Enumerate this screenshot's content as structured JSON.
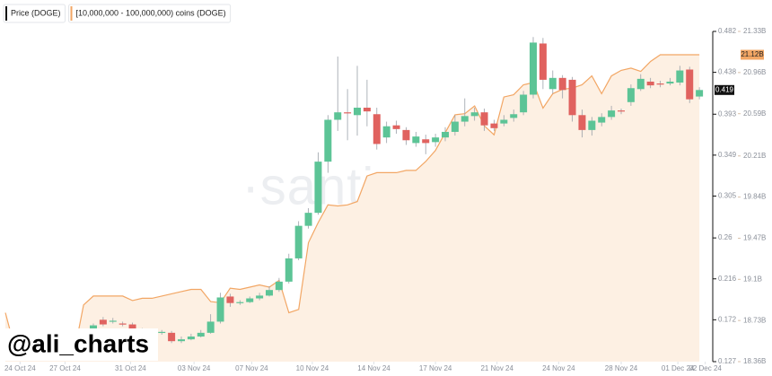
{
  "chart_data": {
    "type": "candlestick",
    "watermark": "·santiment·",
    "overlay_text": "@ali_charts",
    "series": [
      {
        "name": "Price (DOGE)",
        "type": "candlestick",
        "color": "#111111",
        "up_color": "#5cc496",
        "down_color": "#e0625f",
        "x": [
          0,
          1,
          2,
          3,
          4,
          5,
          6,
          7,
          8,
          9,
          10,
          11,
          12,
          13,
          14,
          15,
          16,
          17,
          18,
          19,
          20,
          21,
          22,
          23,
          24,
          25,
          26,
          27,
          28,
          29,
          30,
          31,
          32,
          33,
          34,
          35,
          36,
          37,
          38,
          39,
          40,
          41,
          42,
          43,
          44,
          45,
          46,
          47,
          48,
          49,
          50,
          51,
          52,
          53,
          54,
          55,
          56,
          57,
          58,
          59,
          60,
          61,
          62
        ],
        "open": [
          0.159,
          0.172,
          0.17,
          0.168,
          0.167,
          0.161,
          0.16,
          0.158,
          0.158,
          0.149,
          0.151,
          0.154,
          0.158,
          0.17,
          0.197,
          0.19,
          0.191,
          0.195,
          0.198,
          0.204,
          0.213,
          0.238,
          0.273,
          0.287,
          0.342,
          0.387,
          0.395,
          0.392,
          0.4,
          0.393,
          0.368,
          0.381,
          0.376,
          0.362,
          0.366,
          0.363,
          0.368,
          0.374,
          0.385,
          0.391,
          0.395,
          0.383,
          0.383,
          0.389,
          0.395,
          0.414,
          0.469,
          0.42,
          0.432,
          0.43,
          0.392,
          0.376,
          0.384,
          0.39,
          0.397,
          0.406,
          0.42,
          0.428,
          0.426,
          0.426,
          0.427,
          0.441,
          0.412
        ],
        "high": [
          0.168,
          0.175,
          0.174,
          0.17,
          0.169,
          0.163,
          0.162,
          0.161,
          0.16,
          0.154,
          0.157,
          0.161,
          0.178,
          0.201,
          0.2,
          0.193,
          0.197,
          0.201,
          0.208,
          0.217,
          0.243,
          0.278,
          0.292,
          0.352,
          0.392,
          0.455,
          0.42,
          0.445,
          0.43,
          0.4,
          0.385,
          0.386,
          0.379,
          0.374,
          0.371,
          0.372,
          0.379,
          0.392,
          0.41,
          0.4,
          0.399,
          0.387,
          0.392,
          0.398,
          0.418,
          0.476,
          0.475,
          0.44,
          0.435,
          0.433,
          0.398,
          0.39,
          0.394,
          0.402,
          0.399,
          0.425,
          0.436,
          0.432,
          0.429,
          0.432,
          0.445,
          0.444,
          0.422
        ],
        "low": [
          0.156,
          0.165,
          0.168,
          0.165,
          0.159,
          0.158,
          0.157,
          0.156,
          0.147,
          0.147,
          0.15,
          0.153,
          0.157,
          0.168,
          0.186,
          0.188,
          0.19,
          0.193,
          0.197,
          0.202,
          0.211,
          0.236,
          0.27,
          0.285,
          0.33,
          0.375,
          0.365,
          0.37,
          0.38,
          0.355,
          0.362,
          0.372,
          0.36,
          0.358,
          0.35,
          0.358,
          0.364,
          0.37,
          0.38,
          0.386,
          0.375,
          0.375,
          0.38,
          0.385,
          0.392,
          0.41,
          0.42,
          0.415,
          0.41,
          0.385,
          0.368,
          0.37,
          0.38,
          0.387,
          0.393,
          0.402,
          0.418,
          0.421,
          0.422,
          0.424,
          0.424,
          0.405,
          0.409
        ],
        "close": [
          0.166,
          0.167,
          0.171,
          0.167,
          0.161,
          0.16,
          0.159,
          0.159,
          0.149,
          0.151,
          0.154,
          0.158,
          0.17,
          0.196,
          0.19,
          0.191,
          0.195,
          0.198,
          0.204,
          0.213,
          0.238,
          0.273,
          0.287,
          0.342,
          0.387,
          0.395,
          0.394,
          0.4,
          0.396,
          0.361,
          0.38,
          0.377,
          0.365,
          0.369,
          0.362,
          0.368,
          0.374,
          0.385,
          0.391,
          0.395,
          0.381,
          0.378,
          0.387,
          0.393,
          0.414,
          0.47,
          0.43,
          0.432,
          0.419,
          0.392,
          0.376,
          0.386,
          0.39,
          0.397,
          0.396,
          0.421,
          0.431,
          0.424,
          0.425,
          0.428,
          0.44,
          0.409,
          0.419
        ]
      },
      {
        "name": "[10,000,000 - 100,000,000) coins (DOGE)",
        "type": "area",
        "axis": "y2",
        "color": "#f2a664",
        "fill": "#fdf0e3",
        "x": [
          -9,
          -8,
          -7,
          -6,
          -5,
          -4,
          -3,
          -2,
          -1,
          0,
          1,
          2,
          3,
          4,
          5,
          6,
          7,
          8,
          9,
          10,
          11,
          12,
          13,
          14,
          15,
          16,
          17,
          18,
          19,
          20,
          21,
          22,
          23,
          24,
          25,
          26,
          27,
          28,
          29,
          30,
          31,
          32,
          33,
          34,
          35,
          36,
          37,
          38,
          39,
          40,
          41,
          42,
          43,
          44,
          45,
          46,
          47,
          48,
          49,
          50,
          51,
          52,
          53,
          54,
          55,
          56,
          57,
          58,
          59,
          60,
          61,
          62
        ],
        "values": [
          18.8,
          18.47,
          18.42,
          18.42,
          18.42,
          18.42,
          18.42,
          18.42,
          18.87,
          18.95,
          18.95,
          18.95,
          18.95,
          18.91,
          18.93,
          18.93,
          18.95,
          18.97,
          18.99,
          19.01,
          19.01,
          18.9,
          18.89,
          19.02,
          19.01,
          19.03,
          19.05,
          19.03,
          19.09,
          18.8,
          18.83,
          19.43,
          19.61,
          19.77,
          19.76,
          19.77,
          19.8,
          20.03,
          20.06,
          20.06,
          20.06,
          20.08,
          20.08,
          20.16,
          20.26,
          20.42,
          20.58,
          20.59,
          20.66,
          20.48,
          20.4,
          20.74,
          20.76,
          20.85,
          20.87,
          20.64,
          20.77,
          20.81,
          20.82,
          20.85,
          20.93,
          20.77,
          20.93,
          20.98,
          21.0,
          20.97,
          21.06,
          21.12,
          21.12,
          21.12,
          21.12,
          21.12
        ]
      }
    ],
    "xlim": [
      -9,
      63
    ],
    "xticks": [
      {
        "value": -7.5,
        "label": "24 Oct 24"
      },
      {
        "value": -2.9,
        "label": "27 Oct 24"
      },
      {
        "value": 3.8,
        "label": "31 Oct 24"
      },
      {
        "value": 10.3,
        "label": "03 Nov 24"
      },
      {
        "value": 16.2,
        "label": "07 Nov 24"
      },
      {
        "value": 22.4,
        "label": "10 Nov 24"
      },
      {
        "value": 28.7,
        "label": "14 Nov 24"
      },
      {
        "value": 35.0,
        "label": "17 Nov 24"
      },
      {
        "value": 41.3,
        "label": "21 Nov 24"
      },
      {
        "value": 47.6,
        "label": "24 Nov 24"
      },
      {
        "value": 54.0,
        "label": "28 Nov 24"
      },
      {
        "value": 59.8,
        "label": "01 Dec 24"
      },
      {
        "value": 62.6,
        "label": "02 Dec 24"
      }
    ],
    "ylim": [
      0.127,
      0.482
    ],
    "yticks": [
      0.482,
      0.438,
      0.393,
      0.349,
      0.305,
      0.26,
      0.216,
      0.172,
      0.127
    ],
    "y2lim": [
      18.36,
      21.33
    ],
    "y2ticks": [
      {
        "value": 21.33,
        "label": "21.33B"
      },
      {
        "value": 20.96,
        "label": "20.96B"
      },
      {
        "value": 20.59,
        "label": "20.59B"
      },
      {
        "value": 20.21,
        "label": "20.21B"
      },
      {
        "value": 19.84,
        "label": "19.84B"
      },
      {
        "value": 19.47,
        "label": "19.47B"
      },
      {
        "value": 19.1,
        "label": "19.1B"
      },
      {
        "value": 18.73,
        "label": "18.73B"
      },
      {
        "value": 18.36,
        "label": "18.36B"
      }
    ],
    "last_price": 0.419,
    "last_holdings": {
      "value": 21.12,
      "label": "21.12B"
    }
  }
}
